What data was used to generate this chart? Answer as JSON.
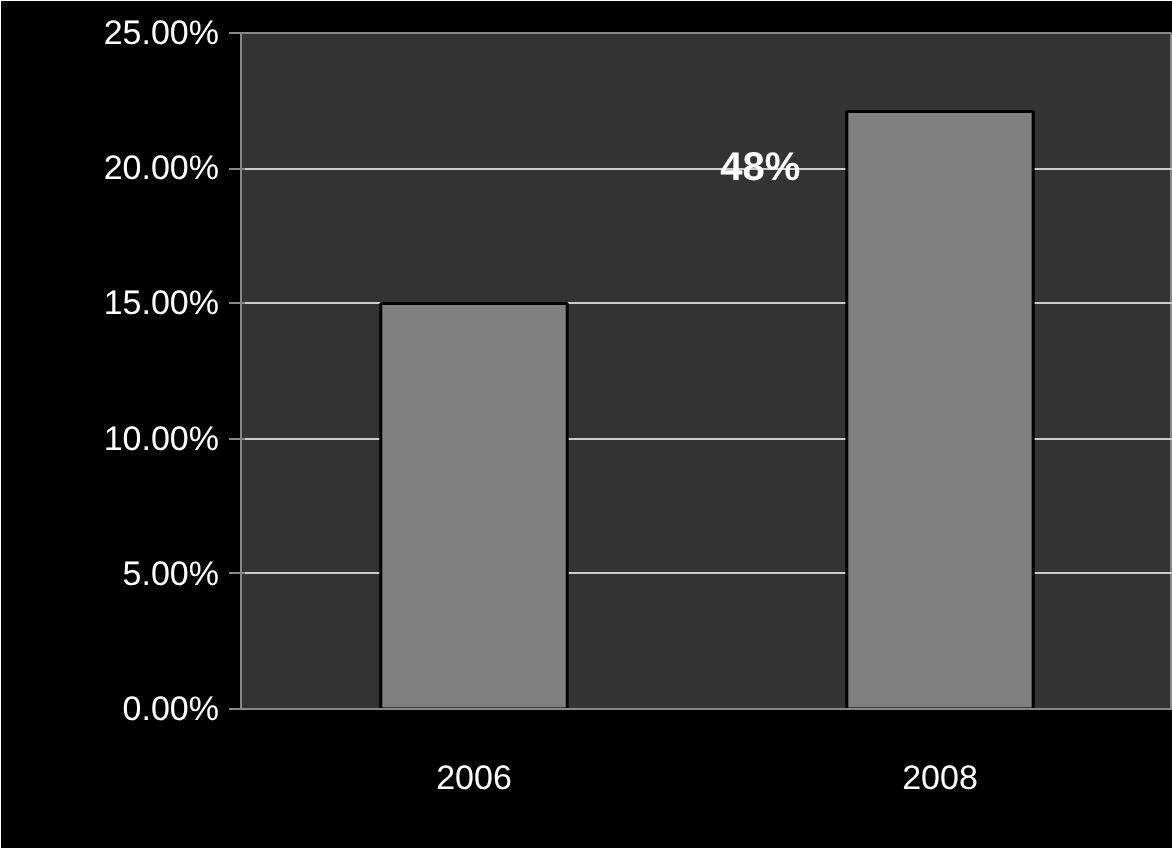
{
  "chart_data": {
    "type": "bar",
    "categories": [
      "2006",
      "2008"
    ],
    "values": [
      15.0,
      22.1
    ],
    "color": "#808080",
    "ylim": [
      0,
      25
    ],
    "yticks": [
      {
        "value": 0,
        "label": "0.00%"
      },
      {
        "value": 5,
        "label": "5.00%"
      },
      {
        "value": 10,
        "label": "10.00%"
      },
      {
        "value": 15,
        "label": "15.00%"
      },
      {
        "value": 20,
        "label": "20.00%"
      },
      {
        "value": 25,
        "label": "25.00%"
      }
    ],
    "grid": "y",
    "annotations": [
      "48%"
    ]
  }
}
